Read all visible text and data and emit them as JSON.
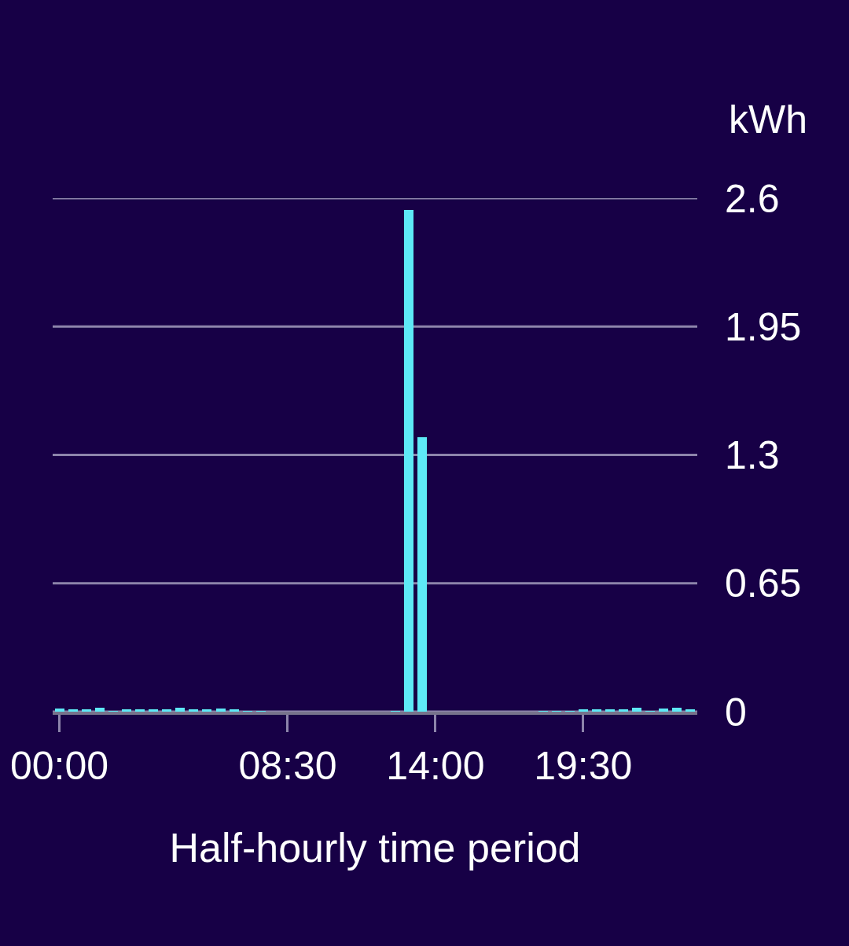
{
  "chart_data": {
    "type": "bar",
    "xlabel": "Half-hourly time period",
    "ylabel": "kWh",
    "x": [
      0,
      0.5,
      1,
      1.5,
      2,
      2.5,
      3,
      3.5,
      4,
      4.5,
      5,
      5.5,
      6,
      6.5,
      7,
      7.5,
      8,
      8.5,
      9,
      9.5,
      10,
      10.5,
      11,
      11.5,
      12,
      12.5,
      13,
      13.5,
      14,
      14.5,
      15,
      15.5,
      16,
      16.5,
      17,
      17.5,
      18,
      18.5,
      19,
      19.5,
      20,
      20.5,
      21,
      21.5,
      22,
      22.5,
      23,
      23.5
    ],
    "values": [
      0.015,
      0.01,
      0.01,
      0.02,
      0.005,
      0.01,
      0.01,
      0.01,
      0.01,
      0.02,
      0.01,
      0.01,
      0.015,
      0.01,
      0.005,
      0.005,
      null,
      null,
      null,
      null,
      null,
      null,
      null,
      null,
      null,
      0.005,
      2.54,
      1.39,
      null,
      null,
      null,
      null,
      null,
      null,
      null,
      null,
      0.005,
      0.005,
      0.005,
      0.01,
      0.01,
      0.01,
      0.01,
      0.02,
      0.005,
      0.015,
      0.02,
      0.01
    ],
    "color": "#5ee9f6",
    "xlim": [
      -0.25,
      23.75
    ],
    "xticks": [
      {
        "value": 0,
        "label": "00:00"
      },
      {
        "value": 8.5,
        "label": "08:30"
      },
      {
        "value": 14,
        "label": "14:00"
      },
      {
        "value": 19.5,
        "label": "19:30"
      }
    ],
    "ylim": [
      0,
      2.6
    ],
    "yticks": [
      0,
      0.65,
      1.3,
      1.95,
      2.6
    ],
    "grid": "y"
  }
}
